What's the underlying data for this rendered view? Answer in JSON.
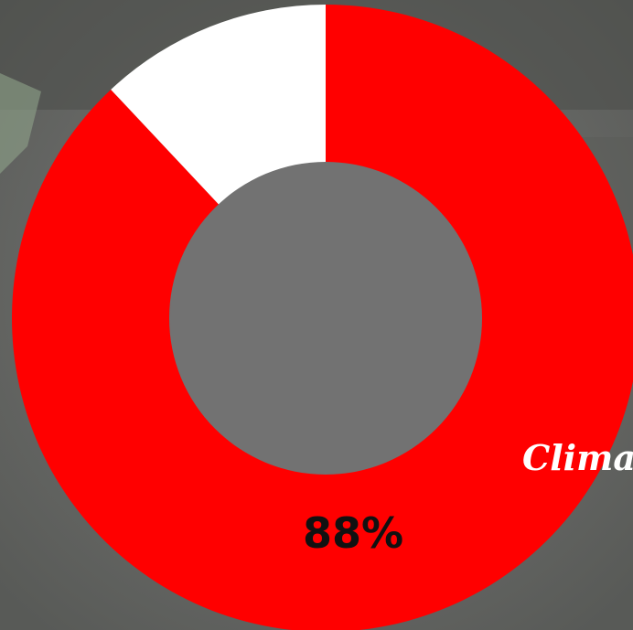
{
  "chart_data": {
    "type": "pie",
    "donut": true,
    "slices": [
      {
        "value": 88,
        "color": "#ff0000"
      },
      {
        "value": 12,
        "color": "#ffffff"
      }
    ],
    "data_label": "88%"
  },
  "overlay_text": "Climat",
  "colors": {
    "background": "#6e706d",
    "hole": "#727272"
  }
}
